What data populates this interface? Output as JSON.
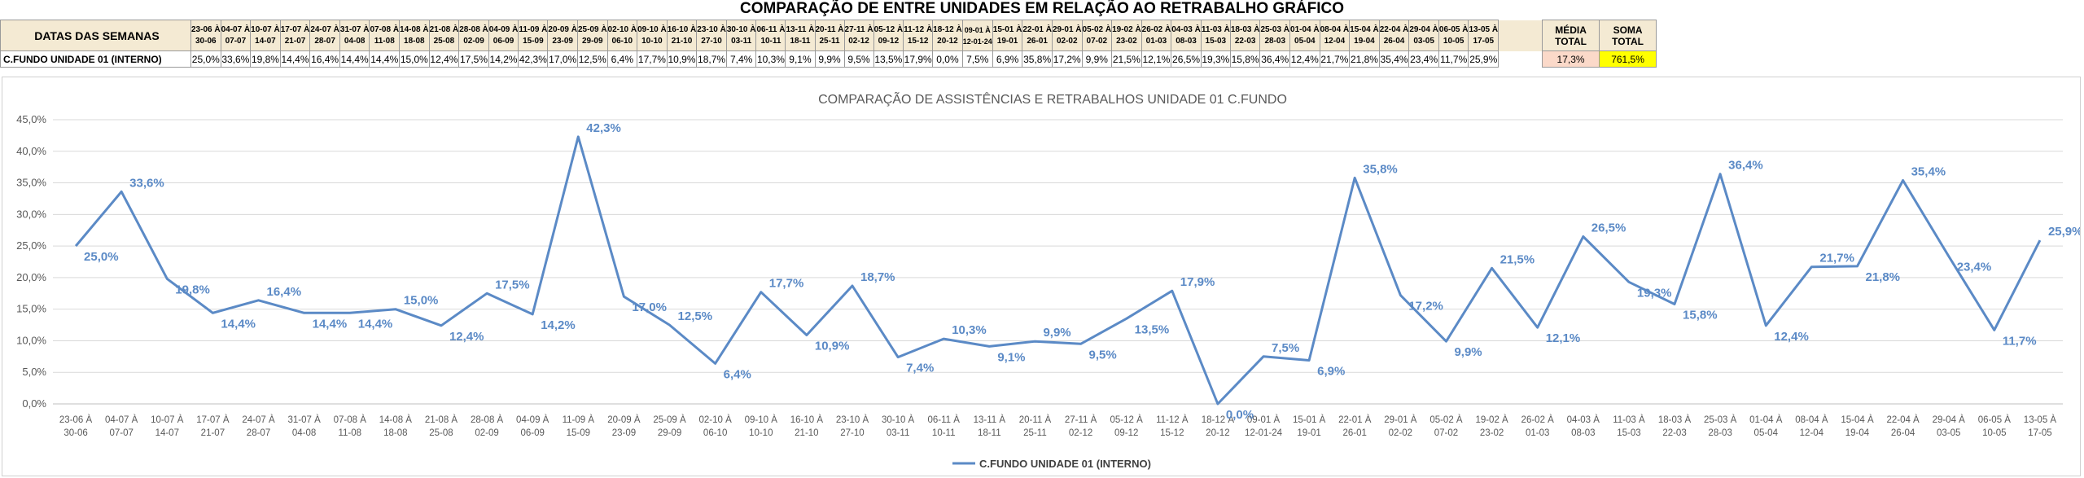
{
  "sheet_title": "COMPARAÇÃO DE ENTRE UNIDADES EM RELAÇÃO AO RETRABALHO GRÁFICO",
  "table": {
    "header_label": "DATAS DAS SEMANAS",
    "row_label": "C.FUNDO UNIDADE 01 (INTERNO)",
    "weeks": [
      {
        "from": "23-06 À",
        "to": "30-06",
        "value": "25,0%"
      },
      {
        "from": "04-07 À",
        "to": "07-07",
        "value": "33,6%"
      },
      {
        "from": "10-07 À",
        "to": "14-07",
        "value": "19,8%"
      },
      {
        "from": "17-07 À",
        "to": "21-07",
        "value": "14,4%"
      },
      {
        "from": "24-07 À",
        "to": "28-07",
        "value": "16,4%"
      },
      {
        "from": "31-07 À",
        "to": "04-08",
        "value": "14,4%"
      },
      {
        "from": "07-08 À",
        "to": "11-08",
        "value": "14,4%"
      },
      {
        "from": "14-08 À",
        "to": "18-08",
        "value": "15,0%"
      },
      {
        "from": "21-08 À",
        "to": "25-08",
        "value": "12,4%"
      },
      {
        "from": "28-08 À",
        "to": "02-09",
        "value": "17,5%"
      },
      {
        "from": "04-09 À",
        "to": "06-09",
        "value": "14,2%"
      },
      {
        "from": "11-09 À",
        "to": "15-09",
        "value": "42,3%"
      },
      {
        "from": "20-09 À",
        "to": "23-09",
        "value": "17,0%"
      },
      {
        "from": "25-09 À",
        "to": "29-09",
        "value": "12,5%"
      },
      {
        "from": "02-10 À",
        "to": "06-10",
        "value": "6,4%"
      },
      {
        "from": "09-10 À",
        "to": "10-10",
        "value": "17,7%"
      },
      {
        "from": "16-10 À",
        "to": "21-10",
        "value": "10,9%"
      },
      {
        "from": "23-10 À",
        "to": "27-10",
        "value": "18,7%"
      },
      {
        "from": "30-10 À",
        "to": "03-11",
        "value": "7,4%"
      },
      {
        "from": "06-11 À",
        "to": "10-11",
        "value": "10,3%"
      },
      {
        "from": "13-11 À",
        "to": "18-11",
        "value": "9,1%"
      },
      {
        "from": "20-11 À",
        "to": "25-11",
        "value": "9,9%"
      },
      {
        "from": "27-11 À",
        "to": "02-12",
        "value": "9,5%"
      },
      {
        "from": "05-12 À",
        "to": "09-12",
        "value": "13,5%"
      },
      {
        "from": "11-12 À",
        "to": "15-12",
        "value": "17,9%"
      },
      {
        "from": "18-12 À",
        "to": "20-12",
        "value": "0,0%"
      },
      {
        "from": "09-01 À",
        "to": "12-01-24",
        "value": "7,5%"
      },
      {
        "from": "15-01 À",
        "to": "19-01",
        "value": "6,9%"
      },
      {
        "from": "22-01 À",
        "to": "26-01",
        "value": "35,8%"
      },
      {
        "from": "29-01 À",
        "to": "02-02",
        "value": "17,2%"
      },
      {
        "from": "05-02 À",
        "to": "07-02",
        "value": "9,9%"
      },
      {
        "from": "19-02 À",
        "to": "23-02",
        "value": "21,5%"
      },
      {
        "from": "26-02 À",
        "to": "01-03",
        "value": "12,1%"
      },
      {
        "from": "04-03 À",
        "to": "08-03",
        "value": "26,5%"
      },
      {
        "from": "11-03 À",
        "to": "15-03",
        "value": "19,3%"
      },
      {
        "from": "18-03 À",
        "to": "22-03",
        "value": "15,8%"
      },
      {
        "from": "25-03 À",
        "to": "28-03",
        "value": "36,4%"
      },
      {
        "from": "01-04 À",
        "to": "05-04",
        "value": "12,4%"
      },
      {
        "from": "08-04 À",
        "to": "12-04",
        "value": "21,7%"
      },
      {
        "from": "15-04 À",
        "to": "19-04",
        "value": "21,8%"
      },
      {
        "from": "22-04 À",
        "to": "26-04",
        "value": "35,4%"
      },
      {
        "from": "29-04 À",
        "to": "03-05",
        "value": "23,4%"
      },
      {
        "from": "06-05 À",
        "to": "10-05",
        "value": "11,7%"
      },
      {
        "from": "13-05 À",
        "to": "17-05",
        "value": "25,9%"
      }
    ],
    "media_label_1": "MÉDIA",
    "media_label_2": "TOTAL",
    "media_value": "17,3%",
    "soma_label_1": "SOMA",
    "soma_label_2": "TOTAL",
    "soma_value": "761,5%"
  },
  "chart_data": {
    "type": "line",
    "title": "COMPARAÇÃO DE ASSISTÊNCIAS E RETRABALHOS UNIDADE 01 C.FUNDO",
    "ylim": [
      0,
      45
    ],
    "yticks": [
      0,
      5,
      10,
      15,
      20,
      25,
      30,
      35,
      40,
      45
    ],
    "ytick_labels": [
      "0,0%",
      "5,0%",
      "10,0%",
      "15,0%",
      "20,0%",
      "25,0%",
      "30,0%",
      "35,0%",
      "40,0%",
      "45,0%"
    ],
    "legend_position": "bottom",
    "grid": true,
    "line_color": "#5b8ac6",
    "categories": [
      [
        "23-06 À",
        "30-06"
      ],
      [
        "04-07 À",
        "07-07"
      ],
      [
        "10-07 À",
        "14-07"
      ],
      [
        "17-07 À",
        "21-07"
      ],
      [
        "24-07 À",
        "28-07"
      ],
      [
        "31-07 À",
        "04-08"
      ],
      [
        "07-08 À",
        "11-08"
      ],
      [
        "14-08 À",
        "18-08"
      ],
      [
        "21-08 À",
        "25-08"
      ],
      [
        "28-08 À",
        "02-09"
      ],
      [
        "04-09 À",
        "06-09"
      ],
      [
        "11-09 À",
        "15-09"
      ],
      [
        "20-09 À",
        "23-09"
      ],
      [
        "25-09 À",
        "29-09"
      ],
      [
        "02-10 À",
        "06-10"
      ],
      [
        "09-10 À",
        "10-10"
      ],
      [
        "16-10 À",
        "21-10"
      ],
      [
        "23-10 À",
        "27-10"
      ],
      [
        "30-10 À",
        "03-11"
      ],
      [
        "06-11 À",
        "10-11"
      ],
      [
        "13-11 À",
        "18-11"
      ],
      [
        "20-11 À",
        "25-11"
      ],
      [
        "27-11 À",
        "02-12"
      ],
      [
        "05-12 À",
        "09-12"
      ],
      [
        "11-12 À",
        "15-12"
      ],
      [
        "18-12 À",
        "20-12"
      ],
      [
        "09-01 À",
        "12-01-24"
      ],
      [
        "15-01 À",
        "19-01"
      ],
      [
        "22-01 À",
        "26-01"
      ],
      [
        "29-01 À",
        "02-02"
      ],
      [
        "05-02 À",
        "07-02"
      ],
      [
        "19-02 À",
        "23-02"
      ],
      [
        "26-02 À",
        "01-03"
      ],
      [
        "04-03 À",
        "08-03"
      ],
      [
        "11-03 À",
        "15-03"
      ],
      [
        "18-03 À",
        "22-03"
      ],
      [
        "25-03 À",
        "28-03"
      ],
      [
        "01-04 À",
        "05-04"
      ],
      [
        "08-04 À",
        "12-04"
      ],
      [
        "15-04 À",
        "19-04"
      ],
      [
        "22-04 À",
        "26-04"
      ],
      [
        "29-04 À",
        "03-05"
      ],
      [
        "06-05 À",
        "10-05"
      ],
      [
        "13-05 À",
        "17-05"
      ]
    ],
    "series": [
      {
        "name": "C.FUNDO UNIDADE 01 (INTERNO)",
        "values": [
          25.0,
          33.6,
          19.8,
          14.4,
          16.4,
          14.4,
          14.4,
          15.0,
          12.4,
          17.5,
          14.2,
          42.3,
          17.0,
          12.5,
          6.4,
          17.7,
          10.9,
          18.7,
          7.4,
          10.3,
          9.1,
          9.9,
          9.5,
          13.5,
          17.9,
          0.0,
          7.5,
          6.9,
          35.8,
          17.2,
          9.9,
          21.5,
          12.1,
          26.5,
          19.3,
          15.8,
          36.4,
          12.4,
          21.7,
          21.8,
          35.4,
          23.4,
          11.7,
          25.9
        ],
        "labels": [
          "25,0%",
          "33,6%",
          "19,8%",
          "14,4%",
          "16,4%",
          "14,4%",
          "14,4%",
          "15,0%",
          "12,4%",
          "17,5%",
          "14,2%",
          "42,3%",
          "17,0%",
          "12,5%",
          "6,4%",
          "17,7%",
          "10,9%",
          "18,7%",
          "7,4%",
          "10,3%",
          "9,1%",
          "9,9%",
          "9,5%",
          "13,5%",
          "17,9%",
          "0,0%",
          "7,5%",
          "6,9%",
          "35,8%",
          "17,2%",
          "9,9%",
          "21,5%",
          "12,1%",
          "26,5%",
          "19,3%",
          "15,8%",
          "36,4%",
          "12,4%",
          "21,7%",
          "21,8%",
          "35,4%",
          "23,4%",
          "11,7%",
          "25,9%"
        ]
      }
    ]
  }
}
